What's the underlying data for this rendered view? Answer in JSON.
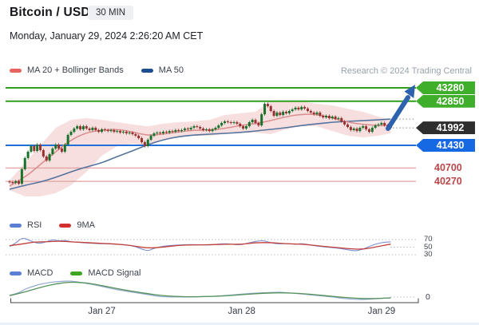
{
  "header": {
    "title": "Bitcoin / USD",
    "interval": "30 MIN",
    "datetime": "Monday, January 29, 2024 2:26:20 AM CET"
  },
  "attribution": "Research © 2024 Trading Central",
  "legends": {
    "main": [
      {
        "label": "MA 20 + Bollinger Bands",
        "color": "#e8655f"
      },
      {
        "label": "MA 50",
        "color": "#1d4f8f"
      }
    ],
    "rsi": [
      {
        "label": "RSI",
        "color": "#5b7fd4"
      },
      {
        "label": "9MA",
        "color": "#d32f2f"
      }
    ],
    "macd": [
      {
        "label": "MACD",
        "color": "#5b7fd4"
      },
      {
        "label": "MACD Signal",
        "color": "#3da522"
      }
    ]
  },
  "colors": {
    "level_green": "#2f9e1a",
    "level_blue": "#2170d8",
    "level_pink": "#e2a2a2",
    "candle_up": "#17722c",
    "candle_down": "#993131",
    "ma20": "#db9090",
    "ma50": "#54749e",
    "band_fill": "rgba(236,170,170,0.38)",
    "rsi_line": "#7b8fd0",
    "rsi_ma": "#c2403a",
    "macd_line": "#93a9cc",
    "macd_signal": "#55935c",
    "arrow": "#2d62ae",
    "dotted": "#9aa0a8"
  },
  "chart_data": {
    "type": "candlestick+indicators",
    "symbol": "Bitcoin / USD",
    "interval": "30 MIN",
    "x_axis": {
      "labels": [
        "Jan 27",
        "Jan 28",
        "Jan 29"
      ],
      "tick_indices": [
        30,
        75.5,
        121
      ]
    },
    "levels": [
      {
        "label": "43280",
        "price": 43280,
        "role": "resistance",
        "line": "green",
        "style": "tag-green"
      },
      {
        "label": "42850",
        "price": 42850,
        "role": "resistance",
        "line": "green",
        "style": "tag-green"
      },
      {
        "label": "41992",
        "price": 41992,
        "role": "last-price",
        "line": "none",
        "style": "tag-black"
      },
      {
        "label": "41430",
        "price": 41430,
        "role": "support",
        "line": "blue",
        "style": "tag-blue"
      },
      {
        "label": "40700",
        "price": 40700,
        "role": "support",
        "line": "pink",
        "style": "text-red"
      },
      {
        "label": "40270",
        "price": 40270,
        "role": "support",
        "line": "pink",
        "style": "text-red"
      }
    ],
    "main": {
      "close": [
        40245,
        40220,
        40275,
        40195,
        40660,
        41020,
        41225,
        41405,
        41250,
        41455,
        41275,
        41070,
        40940,
        41145,
        41325,
        41455,
        41325,
        41225,
        41455,
        41765,
        41865,
        41970,
        42045,
        41945,
        42045,
        41970,
        41920,
        41995,
        41920,
        41865,
        41945,
        41920,
        41890,
        41920,
        41865,
        41890,
        41840,
        41865,
        41815,
        41840,
        41790,
        41740,
        41660,
        41530,
        41405,
        41610,
        41740,
        41815,
        41840,
        41815,
        41865,
        41840,
        41890,
        41865,
        41920,
        41890,
        41920,
        41970,
        41945,
        41995,
        42045,
        42020,
        41970,
        41920,
        41945,
        41890,
        41945,
        41995,
        42070,
        42150,
        42200,
        42175,
        42150,
        42175,
        42125,
        42045,
        41970,
        42045,
        42175,
        42250,
        42150,
        42070,
        42430,
        42765,
        42690,
        42535,
        42380,
        42485,
        42405,
        42510,
        42460,
        42535,
        42585,
        42640,
        42585,
        42665,
        42615,
        42535,
        42485,
        42430,
        42485,
        42380,
        42330,
        42380,
        42305,
        42355,
        42280,
        42305,
        42200,
        42100,
        42020,
        41920,
        41970,
        41890,
        41995,
        42045,
        41945,
        41865,
        41995,
        42070,
        42100,
        42150,
        42070,
        42020,
        41992
      ],
      "ma20": [
        [
          0,
          40120
        ],
        [
          5,
          40400
        ],
        [
          10,
          40810
        ],
        [
          15,
          41225
        ],
        [
          20,
          41610
        ],
        [
          25,
          41840
        ],
        [
          30,
          41920
        ],
        [
          35,
          41945
        ],
        [
          40,
          41865
        ],
        [
          45,
          41740
        ],
        [
          50,
          41790
        ],
        [
          55,
          41865
        ],
        [
          60,
          41920
        ],
        [
          65,
          41920
        ],
        [
          70,
          41970
        ],
        [
          75,
          42070
        ],
        [
          80,
          42125
        ],
        [
          85,
          42225
        ],
        [
          90,
          42355
        ],
        [
          95,
          42430
        ],
        [
          100,
          42430
        ],
        [
          105,
          42305
        ],
        [
          110,
          42175
        ],
        [
          115,
          42100
        ],
        [
          120,
          42070
        ],
        [
          124,
          42070
        ]
      ],
      "ma50": [
        [
          0,
          40015
        ],
        [
          5,
          40145
        ],
        [
          10,
          40245
        ],
        [
          15,
          40400
        ],
        [
          20,
          40580
        ],
        [
          25,
          40735
        ],
        [
          30,
          40865
        ],
        [
          35,
          41070
        ],
        [
          40,
          41250
        ],
        [
          45,
          41455
        ],
        [
          50,
          41610
        ],
        [
          55,
          41710
        ],
        [
          60,
          41760
        ],
        [
          65,
          41790
        ],
        [
          70,
          41815
        ],
        [
          75,
          41840
        ],
        [
          80,
          41890
        ],
        [
          85,
          41945
        ],
        [
          90,
          41995
        ],
        [
          95,
          42070
        ],
        [
          100,
          42120
        ],
        [
          105,
          42175
        ],
        [
          110,
          42200
        ],
        [
          115,
          42225
        ],
        [
          120,
          42250
        ],
        [
          124,
          42275
        ]
      ],
      "bb_upper": [
        [
          0,
          40300
        ],
        [
          5,
          40865
        ],
        [
          10,
          41430
        ],
        [
          15,
          41995
        ],
        [
          20,
          42250
        ],
        [
          25,
          42305
        ],
        [
          30,
          42250
        ],
        [
          35,
          42175
        ],
        [
          40,
          42100
        ],
        [
          45,
          42045
        ],
        [
          50,
          42125
        ],
        [
          55,
          42175
        ],
        [
          60,
          42200
        ],
        [
          65,
          42250
        ],
        [
          70,
          42405
        ],
        [
          75,
          42460
        ],
        [
          80,
          42510
        ],
        [
          85,
          42845
        ],
        [
          90,
          42870
        ],
        [
          95,
          42845
        ],
        [
          100,
          42765
        ],
        [
          105,
          42715
        ],
        [
          110,
          42610
        ],
        [
          115,
          42510
        ],
        [
          120,
          42355
        ],
        [
          124,
          42250
        ]
      ],
      "bb_lower": [
        [
          0,
          39990
        ],
        [
          5,
          39785
        ],
        [
          10,
          39785
        ],
        [
          15,
          39890
        ],
        [
          20,
          40145
        ],
        [
          25,
          40580
        ],
        [
          30,
          41095
        ],
        [
          35,
          41405
        ],
        [
          40,
          41480
        ],
        [
          45,
          41430
        ],
        [
          50,
          41610
        ],
        [
          55,
          41710
        ],
        [
          60,
          41740
        ],
        [
          65,
          41740
        ],
        [
          70,
          41790
        ],
        [
          75,
          41840
        ],
        [
          80,
          41840
        ],
        [
          85,
          41790
        ],
        [
          90,
          41945
        ],
        [
          95,
          42045
        ],
        [
          100,
          42045
        ],
        [
          105,
          41890
        ],
        [
          110,
          41740
        ],
        [
          115,
          41685
        ],
        [
          120,
          41740
        ],
        [
          124,
          41815
        ]
      ],
      "last_price": 41992,
      "ma50_end": 42275
    },
    "rsi": {
      "levels": [
        70,
        50,
        30
      ],
      "rsi": [
        [
          0,
          52
        ],
        [
          2,
          60
        ],
        [
          4,
          75
        ],
        [
          6,
          70
        ],
        [
          8,
          62
        ],
        [
          10,
          60
        ],
        [
          12,
          64
        ],
        [
          14,
          70
        ],
        [
          16,
          66
        ],
        [
          18,
          68
        ],
        [
          20,
          64
        ],
        [
          22,
          63
        ],
        [
          25,
          61
        ],
        [
          30,
          59
        ],
        [
          35,
          58
        ],
        [
          40,
          54
        ],
        [
          43,
          45
        ],
        [
          45,
          40
        ],
        [
          47,
          47
        ],
        [
          50,
          53
        ],
        [
          55,
          56
        ],
        [
          60,
          57
        ],
        [
          65,
          55
        ],
        [
          70,
          60
        ],
        [
          75,
          55
        ],
        [
          78,
          62
        ],
        [
          82,
          68
        ],
        [
          84,
          64
        ],
        [
          87,
          58
        ],
        [
          90,
          60
        ],
        [
          93,
          57
        ],
        [
          95,
          60
        ],
        [
          98,
          55
        ],
        [
          100,
          53
        ],
        [
          103,
          50
        ],
        [
          106,
          48
        ],
        [
          109,
          45
        ],
        [
          112,
          40
        ],
        [
          114,
          42
        ],
        [
          116,
          48
        ],
        [
          118,
          55
        ],
        [
          120,
          60
        ],
        [
          122,
          63
        ],
        [
          124,
          64
        ]
      ],
      "ma9": [
        [
          0,
          54
        ],
        [
          4,
          58
        ],
        [
          8,
          64
        ],
        [
          12,
          64
        ],
        [
          16,
          66
        ],
        [
          20,
          64
        ],
        [
          25,
          62
        ],
        [
          30,
          60
        ],
        [
          35,
          58
        ],
        [
          40,
          54
        ],
        [
          45,
          47
        ],
        [
          50,
          50
        ],
        [
          55,
          55
        ],
        [
          60,
          56
        ],
        [
          65,
          56
        ],
        [
          70,
          58
        ],
        [
          75,
          57
        ],
        [
          80,
          62
        ],
        [
          85,
          62
        ],
        [
          90,
          59
        ],
        [
          95,
          58
        ],
        [
          100,
          54
        ],
        [
          105,
          50
        ],
        [
          110,
          46
        ],
        [
          115,
          44
        ],
        [
          120,
          52
        ],
        [
          124,
          58
        ]
      ]
    },
    "macd": {
      "zero_label": "0",
      "macd": [
        [
          0,
          20
        ],
        [
          3,
          45
        ],
        [
          5,
          90
        ],
        [
          8,
          125
        ],
        [
          10,
          145
        ],
        [
          13,
          165
        ],
        [
          15,
          172
        ],
        [
          18,
          180
        ],
        [
          20,
          180
        ],
        [
          22,
          172
        ],
        [
          25,
          155
        ],
        [
          30,
          120
        ],
        [
          35,
          82
        ],
        [
          40,
          55
        ],
        [
          45,
          28
        ],
        [
          48,
          10
        ],
        [
          50,
          2
        ],
        [
          55,
          0
        ],
        [
          60,
          2
        ],
        [
          65,
          8
        ],
        [
          70,
          15
        ],
        [
          75,
          32
        ],
        [
          80,
          45
        ],
        [
          85,
          52
        ],
        [
          88,
          55
        ],
        [
          90,
          50
        ],
        [
          95,
          35
        ],
        [
          100,
          18
        ],
        [
          105,
          2
        ],
        [
          108,
          -12
        ],
        [
          110,
          -20
        ],
        [
          113,
          -28
        ],
        [
          116,
          -28
        ],
        [
          119,
          -20
        ],
        [
          122,
          -12
        ],
        [
          124,
          -8
        ]
      ],
      "signal": [
        [
          0,
          15
        ],
        [
          5,
          55
        ],
        [
          10,
          110
        ],
        [
          15,
          150
        ],
        [
          20,
          170
        ],
        [
          25,
          160
        ],
        [
          30,
          130
        ],
        [
          35,
          95
        ],
        [
          40,
          65
        ],
        [
          45,
          38
        ],
        [
          50,
          15
        ],
        [
          55,
          5
        ],
        [
          60,
          3
        ],
        [
          65,
          6
        ],
        [
          70,
          12
        ],
        [
          75,
          25
        ],
        [
          80,
          38
        ],
        [
          85,
          47
        ],
        [
          90,
          48
        ],
        [
          95,
          40
        ],
        [
          100,
          25
        ],
        [
          105,
          8
        ],
        [
          110,
          -8
        ],
        [
          115,
          -18
        ],
        [
          120,
          -16
        ],
        [
          124,
          -10
        ]
      ]
    }
  }
}
